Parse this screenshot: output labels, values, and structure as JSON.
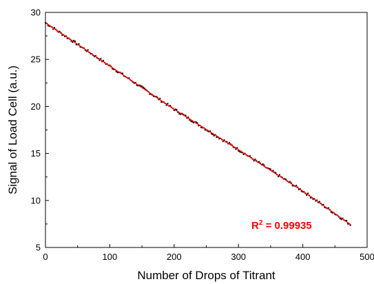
{
  "chart_data": {
    "type": "scatter",
    "title": "",
    "xlabel": "Number of Drops of Titrant",
    "ylabel": "Signal of Load Cell (a.u.)",
    "xlim": [
      0,
      500
    ],
    "ylim": [
      5,
      30
    ],
    "xticks": [
      0,
      100,
      200,
      300,
      400,
      500
    ],
    "yticks": [
      5,
      10,
      15,
      20,
      25,
      30
    ],
    "grid": false,
    "legend": "none",
    "series": [
      {
        "kind": "scatter",
        "color": "#000000",
        "x_range": [
          0,
          475
        ],
        "x_step": 2,
        "y_at_x": [
          [
            0,
            28.9
          ],
          [
            100,
            24.3
          ],
          [
            200,
            19.7
          ],
          [
            300,
            15.4
          ],
          [
            400,
            11.0
          ],
          [
            475,
            7.4
          ]
        ],
        "noise": 0.15
      },
      {
        "kind": "fit-line",
        "color": "#ff0000",
        "x": [
          0,
          100,
          200,
          300,
          400,
          475
        ],
        "y": [
          28.9,
          24.3,
          19.7,
          15.4,
          11.0,
          7.4
        ]
      }
    ],
    "annotation": {
      "label": "R",
      "superscript": "2",
      "value_text": " = 0.99935",
      "color": "#ff0000"
    }
  }
}
